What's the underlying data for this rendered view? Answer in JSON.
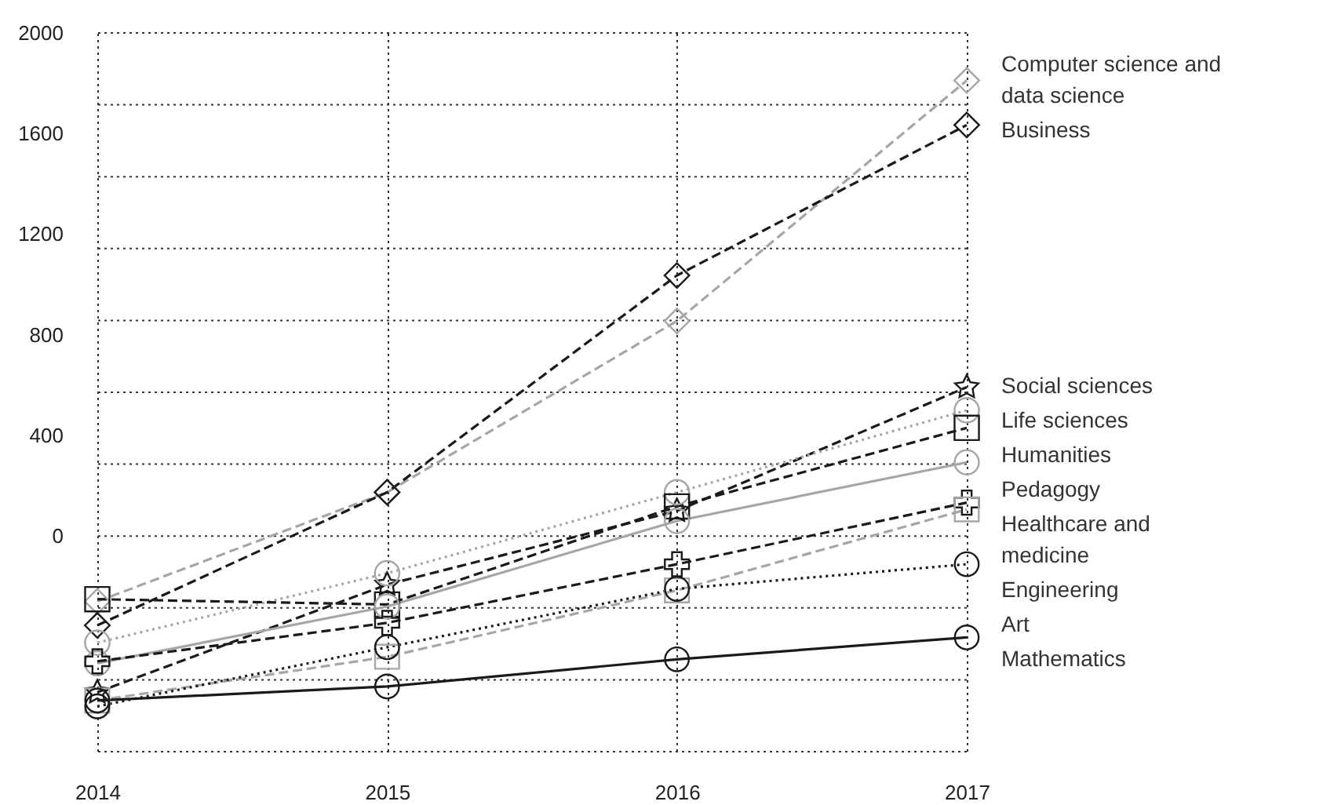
{
  "chart_data": {
    "type": "line",
    "categories": [
      "2014",
      "2015",
      "2016",
      "2017"
    ],
    "ylim": [
      -857.1,
      2000
    ],
    "yticks": [
      {
        "value": -857.1,
        "label": null
      },
      {
        "value": -571.4,
        "label": null
      },
      {
        "value": -285.7,
        "label": null
      },
      0,
      {
        "value": 285.7,
        "label": null
      },
      400,
      {
        "value": 571.4,
        "label": null
      },
      800,
      {
        "value": 857.1,
        "label": null
      },
      {
        "value": 1142.9,
        "label": null
      },
      1200,
      {
        "value": 1428.6,
        "label": null
      },
      1600,
      {
        "value": 1714.3,
        "label": null
      },
      2000
    ],
    "grid": true,
    "series": [
      {
        "name": "Computer science and data science",
        "color": "#a6a6a6",
        "line_style": "dashed",
        "marker": "diamond",
        "values": [
          -260,
          174,
          855,
          1811
        ]
      },
      {
        "name": "Business",
        "color": "#1a1a1a",
        "line_style": "dashed",
        "marker": "diamond",
        "values": [
          -355,
          174,
          1036,
          1634
        ]
      },
      {
        "name": "Social sciences",
        "color": "#1a1a1a",
        "line_style": "dashed",
        "marker": "star",
        "values": [
          -621,
          -193,
          100,
          592
        ]
      },
      {
        "name": "Life sciences",
        "color": "#a6a6a6",
        "line_style": "dotted",
        "marker": "circle",
        "values": [
          -424,
          -148,
          174,
          500
        ]
      },
      {
        "name": "Humanities",
        "color": "#1a1a1a",
        "line_style": "dashed",
        "marker": "square",
        "values": [
          -251,
          -272,
          118,
          430
        ]
      },
      {
        "name": "Pedagogy",
        "color": "#a6a6a6",
        "line_style": "solid",
        "marker": "circle",
        "values": [
          -506,
          -280,
          60,
          293
        ]
      },
      {
        "name": "Healthcare and medicine",
        "color": "#1a1a1a",
        "line_style": "dashed",
        "marker": "cross",
        "values": [
          -498,
          -345,
          -112,
          133
        ]
      },
      {
        "name": "Engineering",
        "color": "#a6a6a6",
        "line_style": "dashed",
        "marker": "square",
        "values": [
          -654,
          -480,
          -216,
          106
        ]
      },
      {
        "name": "Art",
        "color": "#1a1a1a",
        "line_style": "dotted",
        "marker": "circle",
        "values": [
          -677,
          -442,
          -210,
          -112
        ]
      },
      {
        "name": "Mathematics",
        "color": "#1a1a1a",
        "line_style": "solid",
        "marker": "circle",
        "values": [
          -654,
          -598,
          -490,
          -403
        ]
      }
    ]
  }
}
